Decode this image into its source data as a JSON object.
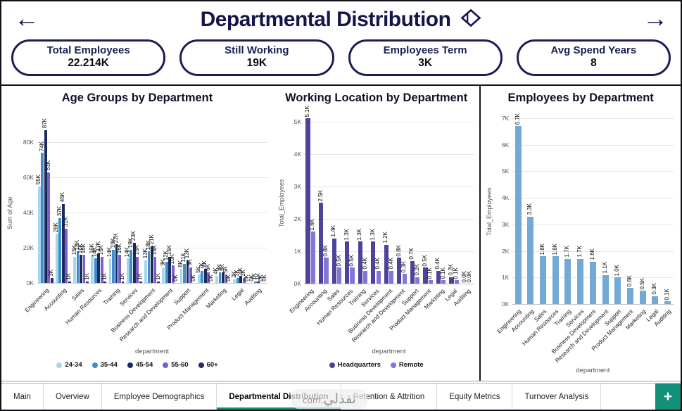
{
  "header": {
    "title": "Departmental Distribution"
  },
  "icons": {
    "back_arrow": "←",
    "forward_arrow": "→",
    "add": "+"
  },
  "colors": {
    "navy": "#1b1e55",
    "tab_accent": "#12907a",
    "age_series": [
      "#a8d6ee",
      "#3f8ecb",
      "#1c2b5e",
      "#7e5fc8",
      "#2f2769"
    ],
    "location_series": [
      "#4c4499",
      "#8476d9"
    ],
    "employees_series": "#74a9d6"
  },
  "kpis": [
    {
      "label": "Total Employees",
      "value": "22.214K"
    },
    {
      "label": "Still Working",
      "value": "19K"
    },
    {
      "label": "Employees Term",
      "value": "3K"
    },
    {
      "label": "Avg Spend Years",
      "value": "8"
    }
  ],
  "chart_data": [
    {
      "type": "bar",
      "title": "Age Groups by Department",
      "xlabel": "department",
      "ylabel": "Sum of Age",
      "ylim": [
        0,
        80
      ],
      "yticks": [
        "0K",
        "20K",
        "40K",
        "60K",
        "80K"
      ],
      "unit": "K",
      "decimals": 0,
      "grid": true,
      "legend_position": "bottom",
      "categories": [
        "Engineering",
        "Accounting",
        "Sales",
        "Human Resources",
        "Training",
        "Services",
        "Business Development",
        "Research and Development",
        "Support",
        "Product Management",
        "Marketing",
        "Legal",
        "Auditing"
      ],
      "series": [
        {
          "name": "24-34",
          "color": "#a8d6ee",
          "values": [
            55,
            28,
            15,
            16,
            14,
            14,
            13,
            9,
            8,
            5,
            4,
            2,
            0
          ]
        },
        {
          "name": "35-44",
          "color": "#3f8ecb",
          "values": [
            74,
            37,
            18,
            14,
            19,
            19,
            18,
            12,
            11,
            7,
            6,
            3,
            1
          ]
        },
        {
          "name": "45-54",
          "color": "#1c2b5e",
          "values": [
            87,
            45,
            16,
            17,
            22,
            23,
            21,
            15,
            13,
            8,
            6,
            4,
            1
          ]
        },
        {
          "name": "55-60",
          "color": "#7e5fc8",
          "values": [
            63,
            31,
            16,
            15,
            16,
            15,
            15,
            10,
            9,
            6,
            5,
            3,
            0
          ]
        },
        {
          "name": "60+",
          "color": "#2f2769",
          "values": [
            3,
            1,
            1,
            1,
            1,
            1,
            1,
            0,
            0,
            0,
            0,
            0,
            0
          ]
        }
      ]
    },
    {
      "type": "bar",
      "title": "Working Location by Department",
      "xlabel": "department",
      "ylabel": "Total_Employees",
      "ylim": [
        0,
        5
      ],
      "yticks": [
        "0K",
        "1K",
        "2K",
        "3K",
        "4K",
        "5K"
      ],
      "unit": "K",
      "decimals": 1,
      "grid": true,
      "legend_position": "bottom",
      "categories": [
        "Engineering",
        "Accounting",
        "Sales",
        "Human Resources",
        "Training",
        "Services",
        "Business Development",
        "Research and Development",
        "Support",
        "Product Management",
        "Marketing",
        "Legal",
        "Auditing"
      ],
      "series": [
        {
          "name": "Headquarters",
          "color": "#4c4499",
          "values": [
            5.1,
            2.5,
            1.4,
            1.3,
            1.3,
            1.3,
            1.2,
            0.8,
            0.7,
            0.5,
            0.4,
            0.2,
            0.0
          ]
        },
        {
          "name": "Remote",
          "color": "#8476d9",
          "values": [
            1.6,
            0.8,
            0.5,
            0.5,
            0.4,
            0.4,
            0.4,
            0.3,
            0.2,
            0.1,
            0.1,
            0.1,
            0.0
          ]
        }
      ]
    },
    {
      "type": "bar",
      "title": "Employees by Department",
      "xlabel": "department",
      "ylabel": "Total_Employees",
      "ylim": [
        0,
        7
      ],
      "yticks": [
        "0K",
        "1K",
        "2K",
        "3K",
        "4K",
        "5K",
        "6K",
        "7K"
      ],
      "unit": "K",
      "decimals": 1,
      "grid": true,
      "legend_position": "none",
      "categories": [
        "Engineering",
        "Accounting",
        "Sales",
        "Human Resources",
        "Training",
        "Services",
        "Business Development",
        "Research and Development",
        "Support",
        "Product Management",
        "Marketing",
        "Legal",
        "Auditing"
      ],
      "series": [
        {
          "name": "Total_Employees",
          "color": "#74a9d6",
          "values": [
            6.7,
            3.3,
            1.8,
            1.8,
            1.7,
            1.7,
            1.6,
            1.1,
            1.0,
            0.6,
            0.5,
            0.3,
            0.1
          ]
        }
      ]
    }
  ],
  "tabs": {
    "items": [
      "Main",
      "Overview",
      "Employee Demographics",
      "Departmental Distribution",
      "Retention & Attrition",
      "Equity Metrics",
      "Turnover Analysis"
    ],
    "active": "Departmental Distribution",
    "add_label": "+"
  },
  "watermark": {
    "text": "نفذلي",
    "tld": ".com"
  }
}
